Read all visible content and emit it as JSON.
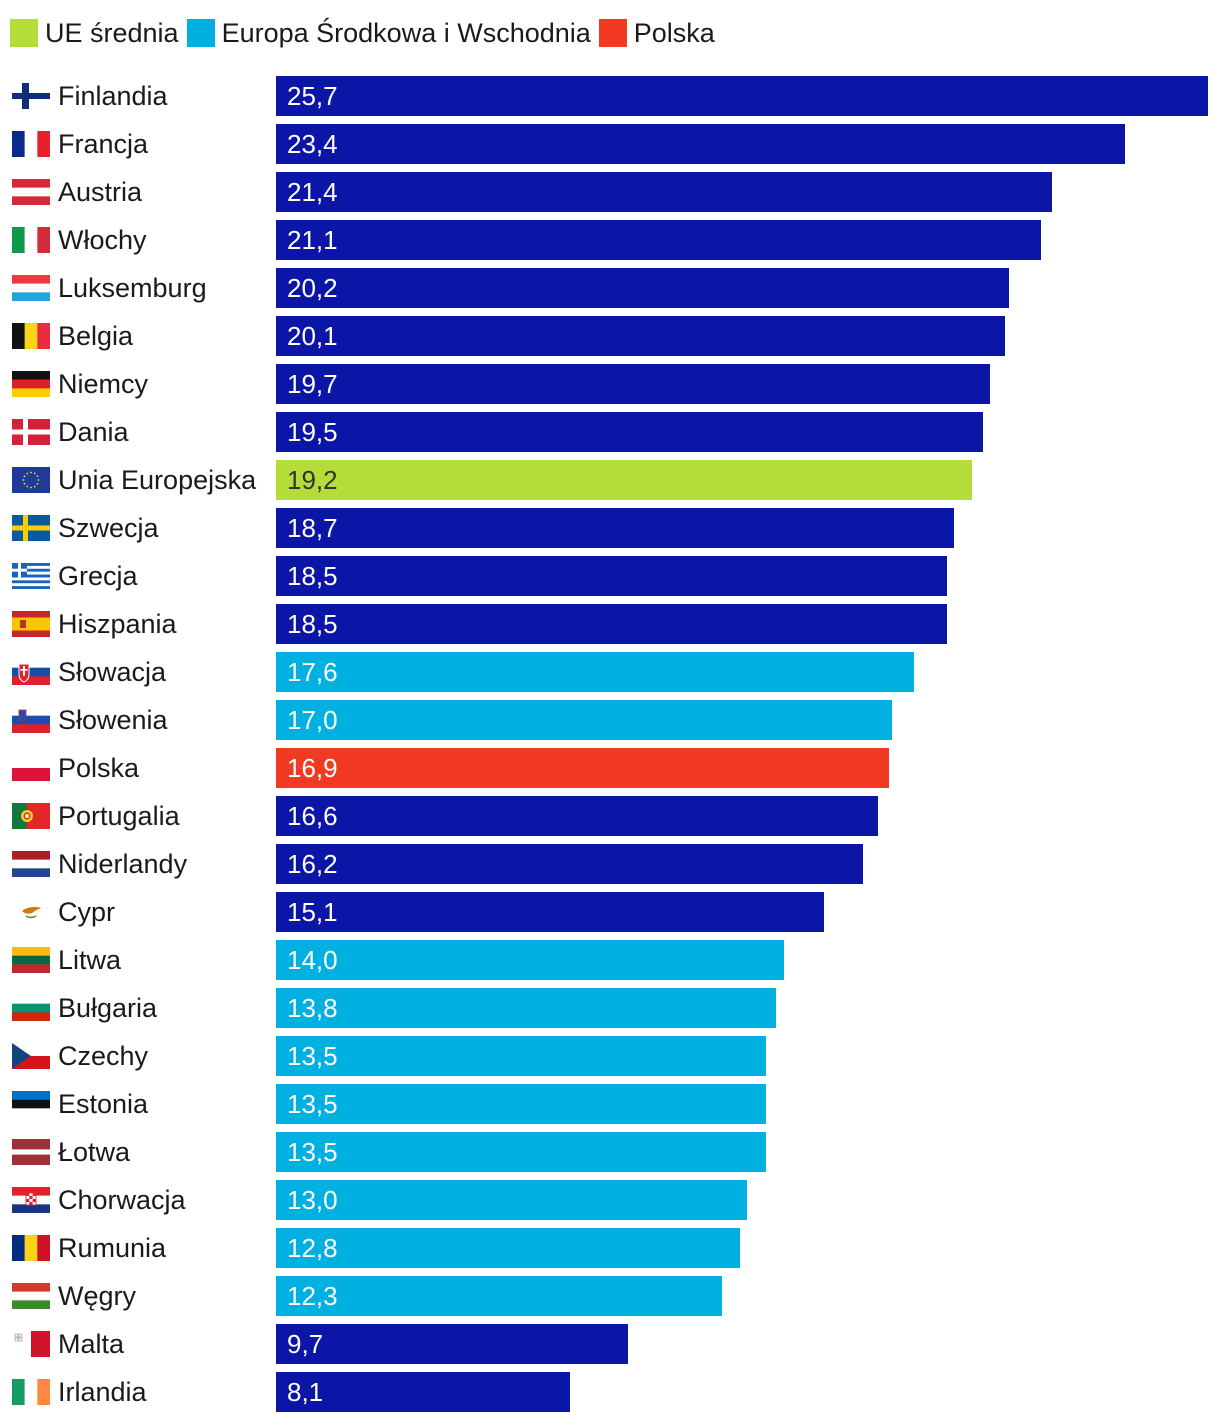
{
  "legend": [
    {
      "label": "UE średnia",
      "color": "#b5dd3a"
    },
    {
      "label": "Europa Środkowa i Wschodnia",
      "color": "#00b0e0"
    },
    {
      "label": "Polska",
      "color": "#f23a22"
    }
  ],
  "colors": {
    "other": "#0b15a6",
    "eu": "#b5dd3a",
    "cee": "#00b0e0",
    "pl": "#f23a22"
  },
  "chart_data": {
    "type": "bar",
    "orientation": "horizontal",
    "title": "",
    "xlabel": "",
    "ylabel": "",
    "xlim": [
      0,
      25.7
    ],
    "categories": [
      "Finlandia",
      "Francja",
      "Austria",
      "Włochy",
      "Luksemburg",
      "Belgia",
      "Niemcy",
      "Dania",
      "Unia Europejska",
      "Szwecja",
      "Grecja",
      "Hiszpania",
      "Słowacja",
      "Słowenia",
      "Polska",
      "Portugalia",
      "Niderlandy",
      "Cypr",
      "Litwa",
      "Bułgaria",
      "Czechy",
      "Estonia",
      "Łotwa",
      "Chorwacja",
      "Rumunia",
      "Węgry",
      "Malta",
      "Irlandia"
    ],
    "values": [
      25.7,
      23.4,
      21.4,
      21.1,
      20.2,
      20.1,
      19.7,
      19.5,
      19.2,
      18.7,
      18.5,
      18.5,
      17.6,
      17.0,
      16.9,
      16.6,
      16.2,
      15.1,
      14.0,
      13.8,
      13.5,
      13.5,
      13.5,
      13.0,
      12.8,
      12.3,
      9.7,
      8.1
    ],
    "value_labels": [
      "25,7",
      "23,4",
      "21,4",
      "21,1",
      "20,2",
      "20,1",
      "19,7",
      "19,5",
      "19,2",
      "18,7",
      "18,5",
      "18,5",
      "17,6",
      "17,0",
      "16,9",
      "16,6",
      "16,2",
      "15,1",
      "14,0",
      "13,8",
      "13,5",
      "13,5",
      "13,5",
      "13,0",
      "12,8",
      "12,3",
      "9,7",
      "8,1"
    ],
    "groups": [
      "other",
      "other",
      "other",
      "other",
      "other",
      "other",
      "other",
      "other",
      "eu",
      "other",
      "other",
      "other",
      "cee",
      "cee",
      "pl",
      "other",
      "other",
      "other",
      "cee",
      "cee",
      "cee",
      "cee",
      "cee",
      "cee",
      "cee",
      "cee",
      "other",
      "other"
    ],
    "flags": [
      "fi",
      "fr",
      "at",
      "it",
      "lu",
      "be",
      "de",
      "dk",
      "eu",
      "se",
      "gr",
      "es",
      "sk",
      "si",
      "pl",
      "pt",
      "nl",
      "cy",
      "lt",
      "bg",
      "cz",
      "ee",
      "lv",
      "hr",
      "ro",
      "hu",
      "mt",
      "ie"
    ]
  }
}
